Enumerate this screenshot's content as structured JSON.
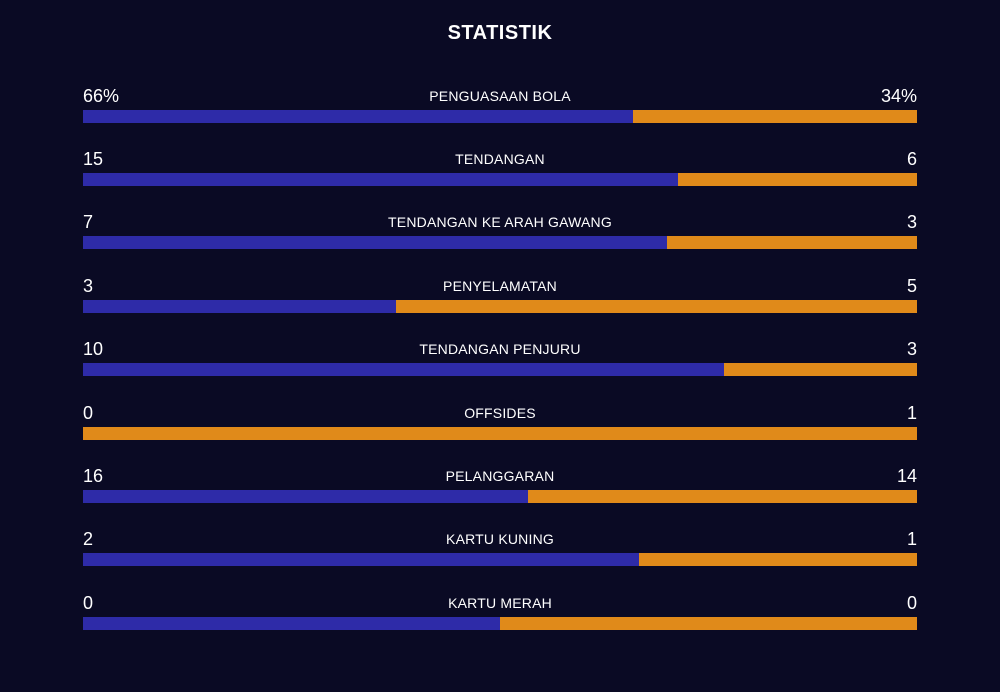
{
  "title": "STATISTIK",
  "colors": {
    "background": "#0a0a24",
    "home": "#2e2ba8",
    "away": "#e08a1a",
    "text": "#ffffff"
  },
  "stats": [
    {
      "label": "PENGUASAAN BOLA",
      "home": "66%",
      "away": "34%",
      "home_share": 0.66
    },
    {
      "label": "TENDANGAN",
      "home": "15",
      "away": "6",
      "home_share": 0.714
    },
    {
      "label": "TENDANGAN KE ARAH GAWANG",
      "home": "7",
      "away": "3",
      "home_share": 0.7
    },
    {
      "label": "PENYELAMATAN",
      "home": "3",
      "away": "5",
      "home_share": 0.375
    },
    {
      "label": "TENDANGAN PENJURU",
      "home": "10",
      "away": "3",
      "home_share": 0.769
    },
    {
      "label": "OFFSIDES",
      "home": "0",
      "away": "1",
      "home_share": 0.0
    },
    {
      "label": "PELANGGARAN",
      "home": "16",
      "away": "14",
      "home_share": 0.533
    },
    {
      "label": "KARTU KUNING",
      "home": "2",
      "away": "1",
      "home_share": 0.667
    },
    {
      "label": "KARTU MERAH",
      "home": "0",
      "away": "0",
      "home_share": 0.5
    }
  ]
}
